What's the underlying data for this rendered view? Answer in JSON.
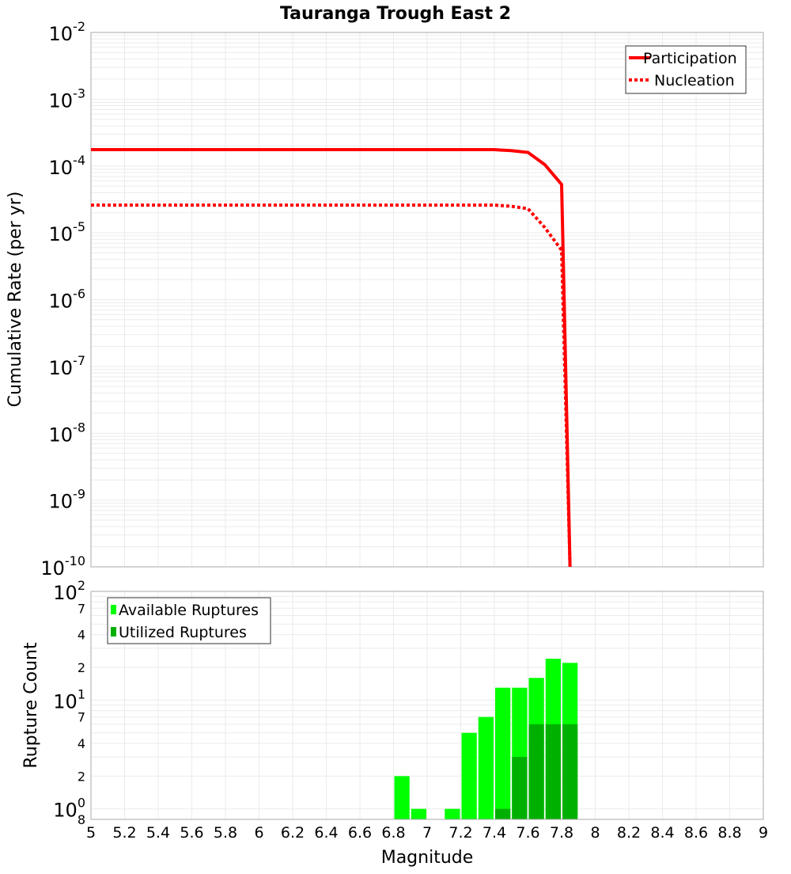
{
  "chart_data": [
    {
      "type": "line",
      "title": "Tauranga Trough East 2",
      "xlabel": "Magnitude",
      "ylabel": "Cumulative Rate (per yr)",
      "xlim": [
        5,
        9
      ],
      "ylim": [
        1e-10,
        0.01
      ],
      "yscale": "log",
      "grid": true,
      "legend_position": "top-right",
      "y_tick_exponents": [
        "-2",
        "-3",
        "-4",
        "-5",
        "-6",
        "-7",
        "-8",
        "-9",
        "-10"
      ],
      "series": [
        {
          "name": "Participation",
          "style": "solid",
          "color": "#ff0000",
          "x": [
            5,
            7.4,
            7.5,
            7.6,
            7.7,
            7.8,
            7.85
          ],
          "y": [
            0.000176,
            0.000176,
            0.00017,
            0.00016,
            0.000105,
            5.3e-05,
            1e-10
          ]
        },
        {
          "name": "Nucleation",
          "style": "dotted",
          "color": "#ff0000",
          "x": [
            5,
            7.4,
            7.5,
            7.6,
            7.7,
            7.8,
            7.85
          ],
          "y": [
            2.6e-05,
            2.6e-05,
            2.5e-05,
            2.3e-05,
            1.2e-05,
            5.5e-06,
            1e-10
          ]
        }
      ]
    },
    {
      "type": "bar",
      "xlabel": "Magnitude",
      "ylabel": "Rupture Count",
      "xlim": [
        5,
        9
      ],
      "ylim": [
        0.8,
        100
      ],
      "yscale": "log",
      "legend_position": "top-left",
      "x_ticks": [
        "5",
        "5.2",
        "5.4",
        "5.6",
        "5.8",
        "6",
        "6.2",
        "6.4",
        "6.6",
        "6.8",
        "7",
        "7.2",
        "7.4",
        "7.6",
        "7.8",
        "8",
        "8.2",
        "8.4",
        "8.6",
        "8.8",
        "9"
      ],
      "y_ticks": [
        {
          "v": 100,
          "base": "10",
          "exp": "2"
        },
        {
          "v": 70,
          "label": "7"
        },
        {
          "v": 40,
          "label": "4"
        },
        {
          "v": 20,
          "label": "2"
        },
        {
          "v": 10,
          "base": "10",
          "exp": "1"
        },
        {
          "v": 7,
          "label": "7"
        },
        {
          "v": 4,
          "label": "4"
        },
        {
          "v": 2,
          "label": "2"
        },
        {
          "v": 1,
          "base": "10",
          "exp": "0"
        },
        {
          "v": 0.8,
          "label": "8"
        }
      ],
      "bin_width": 0.1,
      "series": [
        {
          "name": "Available Ruptures",
          "color": "#00ff00",
          "x": [
            6.85,
            6.95,
            7.15,
            7.25,
            7.35,
            7.45,
            7.55,
            7.65,
            7.75,
            7.85
          ],
          "values": [
            2,
            1,
            1,
            5,
            7,
            13,
            13,
            16,
            24,
            22
          ]
        },
        {
          "name": "Utilized Ruptures",
          "color": "#00b000",
          "x": [
            7.45,
            7.55,
            7.65,
            7.75,
            7.85
          ],
          "values": [
            1,
            3,
            6,
            6,
            6
          ]
        }
      ]
    }
  ]
}
